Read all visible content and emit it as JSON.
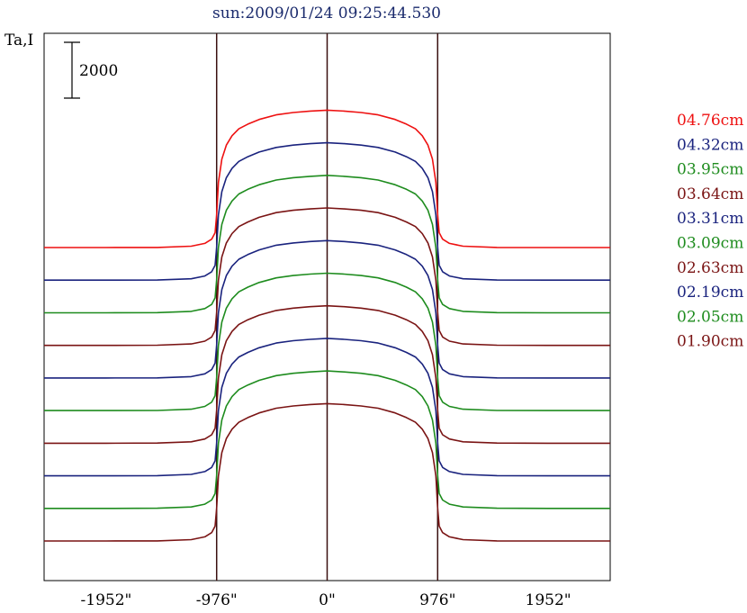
{
  "chart_data": {
    "type": "line",
    "title": "sun:2009/01/24 09:25:44.530",
    "ylabel": "Ta,I",
    "xlabel": "",
    "xlim": [
      -2500,
      2500
    ],
    "x_ticks": [
      {
        "value": -1952,
        "label": "-1952\""
      },
      {
        "value": -976,
        "label": "-976\""
      },
      {
        "value": 0,
        "label": "0\""
      },
      {
        "value": 976,
        "label": "976\""
      },
      {
        "value": 1952,
        "label": "1952\""
      }
    ],
    "vertical_markers": [
      -976,
      0,
      976
    ],
    "scale_bar": {
      "value": 2000,
      "label": "2000"
    },
    "profile_x": [
      -2500,
      -1952,
      -1500,
      -1200,
      -1080,
      -1020,
      -990,
      -976,
      -960,
      -930,
      -890,
      -840,
      -780,
      -700,
      -600,
      -450,
      -300,
      -150,
      0,
      150,
      300,
      450,
      600,
      700,
      780,
      840,
      890,
      930,
      960,
      976,
      990,
      1020,
      1080,
      1200,
      1500,
      1952,
      2500
    ],
    "series": [
      {
        "name": "04.76cm",
        "color": "#ee1111",
        "baseline": 0,
        "shape": [
          0,
          0,
          3,
          30,
          90,
          180,
          320,
          700,
          1400,
          1900,
          2200,
          2400,
          2550,
          2650,
          2750,
          2850,
          2900,
          2930,
          2950,
          2930,
          2900,
          2850,
          2750,
          2650,
          2550,
          2400,
          2200,
          1900,
          1400,
          700,
          320,
          180,
          90,
          30,
          3,
          0,
          0
        ]
      },
      {
        "name": "04.32cm",
        "color": "#1a237e",
        "baseline": -700,
        "shape": [
          0,
          0,
          3,
          30,
          90,
          180,
          320,
          700,
          1400,
          1900,
          2200,
          2400,
          2550,
          2650,
          2750,
          2850,
          2900,
          2930,
          2950,
          2930,
          2900,
          2850,
          2750,
          2650,
          2550,
          2400,
          2200,
          1900,
          1400,
          700,
          320,
          180,
          90,
          30,
          3,
          0,
          0
        ]
      },
      {
        "name": "03.95cm",
        "color": "#1e8c1e",
        "baseline": -1400,
        "shape": [
          0,
          0,
          3,
          30,
          90,
          180,
          320,
          700,
          1400,
          1900,
          2200,
          2400,
          2550,
          2650,
          2750,
          2850,
          2900,
          2930,
          2950,
          2930,
          2900,
          2850,
          2750,
          2650,
          2550,
          2400,
          2200,
          1900,
          1400,
          700,
          320,
          180,
          90,
          30,
          3,
          0,
          0
        ]
      },
      {
        "name": "03.64cm",
        "color": "#7a1414",
        "baseline": -2100,
        "shape": [
          0,
          0,
          3,
          30,
          90,
          180,
          320,
          700,
          1400,
          1900,
          2200,
          2400,
          2550,
          2650,
          2750,
          2850,
          2900,
          2930,
          2950,
          2930,
          2900,
          2850,
          2750,
          2650,
          2550,
          2400,
          2200,
          1900,
          1400,
          700,
          320,
          180,
          90,
          30,
          3,
          0,
          0
        ]
      },
      {
        "name": "03.31cm",
        "color": "#1a237e",
        "baseline": -2800,
        "shape": [
          0,
          0,
          3,
          30,
          90,
          180,
          320,
          700,
          1400,
          1900,
          2200,
          2400,
          2550,
          2650,
          2750,
          2850,
          2900,
          2930,
          2950,
          2930,
          2900,
          2850,
          2750,
          2650,
          2550,
          2400,
          2200,
          1900,
          1400,
          700,
          320,
          180,
          90,
          30,
          3,
          0,
          0
        ]
      },
      {
        "name": "03.09cm",
        "color": "#1e8c1e",
        "baseline": -3500,
        "shape": [
          0,
          0,
          3,
          30,
          90,
          180,
          320,
          700,
          1400,
          1900,
          2200,
          2400,
          2550,
          2650,
          2750,
          2850,
          2900,
          2930,
          2950,
          2930,
          2900,
          2850,
          2750,
          2650,
          2550,
          2400,
          2200,
          1900,
          1400,
          700,
          320,
          180,
          90,
          30,
          3,
          0,
          0
        ]
      },
      {
        "name": "02.63cm",
        "color": "#7a1414",
        "baseline": -4200,
        "shape": [
          0,
          0,
          3,
          30,
          90,
          180,
          320,
          700,
          1400,
          1900,
          2200,
          2400,
          2550,
          2650,
          2750,
          2850,
          2900,
          2930,
          2950,
          2930,
          2900,
          2850,
          2750,
          2650,
          2550,
          2400,
          2200,
          1900,
          1400,
          700,
          320,
          180,
          90,
          30,
          3,
          0,
          0
        ]
      },
      {
        "name": "02.19cm",
        "color": "#1a237e",
        "baseline": -4900,
        "shape": [
          0,
          0,
          3,
          30,
          90,
          180,
          320,
          700,
          1400,
          1900,
          2200,
          2400,
          2550,
          2650,
          2750,
          2850,
          2900,
          2930,
          2950,
          2930,
          2900,
          2850,
          2750,
          2650,
          2550,
          2400,
          2200,
          1900,
          1400,
          700,
          320,
          180,
          90,
          30,
          3,
          0,
          0
        ]
      },
      {
        "name": "02.05cm",
        "color": "#1e8c1e",
        "baseline": -5600,
        "shape": [
          0,
          0,
          3,
          30,
          90,
          180,
          320,
          700,
          1400,
          1900,
          2200,
          2400,
          2550,
          2650,
          2750,
          2850,
          2900,
          2930,
          2950,
          2930,
          2900,
          2850,
          2750,
          2650,
          2550,
          2400,
          2200,
          1900,
          1400,
          700,
          320,
          180,
          90,
          30,
          3,
          0,
          0
        ]
      },
      {
        "name": "01.90cm",
        "color": "#7a1414",
        "baseline": -6300,
        "shape": [
          0,
          0,
          3,
          30,
          90,
          180,
          320,
          700,
          1400,
          1900,
          2200,
          2400,
          2550,
          2650,
          2750,
          2850,
          2900,
          2930,
          2950,
          2930,
          2900,
          2850,
          2750,
          2650,
          2550,
          2400,
          2200,
          1900,
          1400,
          700,
          320,
          180,
          90,
          30,
          3,
          0,
          0
        ]
      }
    ],
    "ylim": [
      -7150,
      4600
    ],
    "grid": false,
    "legend_position": "right"
  }
}
